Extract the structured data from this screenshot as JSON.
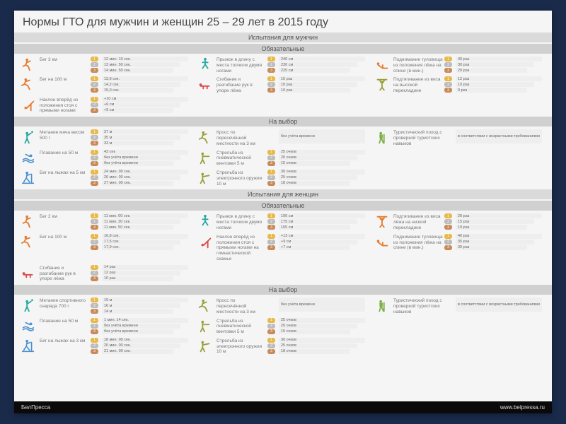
{
  "title": "Нормы ГТО для мужчин и женщин 25 – 29 лет в 2015 году",
  "colors": {
    "page_bg": "#1a2a4a",
    "card_bg": "#f5f5f5",
    "header_bg": "#dadada",
    "gold": "#e8b948",
    "silver": "#bcbcbc",
    "bronze": "#c88a5a",
    "icon_orange": "#e67b2e",
    "icon_teal": "#2aa9a0",
    "icon_red": "#d94c4c",
    "icon_olive": "#9aa03c",
    "icon_blue": "#4a90d0",
    "icon_green": "#7fb04d"
  },
  "sections": {
    "men": "Испытания для мужчин",
    "women": "Испытания для женщин",
    "required": "Обязательные",
    "optional": "На выбор"
  },
  "men_required": [
    {
      "icon": "runner",
      "color": "#e67b2e",
      "label": "Бег 3 км",
      "values": [
        "12 мин. 10 сек.",
        "13 мин. 50 сек.",
        "14 мин. 50 сек."
      ]
    },
    {
      "icon": "jump",
      "color": "#2aa9a0",
      "label": "Прыжок в длину с места толчком двумя ногами",
      "values": [
        "240 см",
        "230 см",
        "225 см"
      ]
    },
    {
      "icon": "situp",
      "color": "#e67b2e",
      "label": "Поднимание туловища из положения лёжа на спине (в мин.)",
      "values": [
        "40 раз",
        "30 раз",
        "20 раз"
      ]
    },
    {
      "icon": "sprint",
      "color": "#e67b2e",
      "label": "Бег на 100 м",
      "values": [
        "13,9 сек.",
        "14,2 сек.",
        "15,0 сек."
      ]
    },
    {
      "icon": "pushup",
      "color": "#d94c4c",
      "label": "Сгибание и разгибание рук в упоре лёжа",
      "values": [
        "16 раз",
        "10 раз",
        "10 раз"
      ]
    },
    {
      "icon": "pullup",
      "color": "#9aa03c",
      "label": "Подтягивание из виса на высокой перекладине",
      "values": [
        "12 раз",
        "10 раз",
        "9 раз"
      ]
    },
    {
      "icon": "bend",
      "color": "#e67b2e",
      "label": "Наклон вперёд из положения стоя с прямыми ногами",
      "values": [
        "+10 см",
        "+6 см",
        "+5 см"
      ]
    }
  ],
  "men_optional": [
    {
      "icon": "throw",
      "color": "#2aa9a0",
      "label": "Метание мяча весом 500 г",
      "values": [
        "37 м",
        "35 м",
        "33 м"
      ]
    },
    {
      "icon": "cross",
      "color": "#9aa03c",
      "label": "Кросс по пересечённой местности на 3 км",
      "values": [
        "без учёта времени"
      ],
      "single": true
    },
    {
      "icon": "hike",
      "color": "#7fb04d",
      "label": "Туристический поход с проверкой туристских навыков",
      "values": [
        "в соответствии с возрастными требованиями"
      ],
      "single": true
    },
    {
      "icon": "swim",
      "color": "#4a90d0",
      "label": "Плавание на 50 м",
      "values": [
        "43 сек",
        "без учёта времени",
        "без учёта времени"
      ]
    },
    {
      "icon": "shoot",
      "color": "#9aa03c",
      "label": "Стрельба из пневматической винтовки 5 м",
      "values": [
        "25 очков",
        "20 очков",
        "15 очков"
      ]
    },
    {
      "icon": "blank",
      "color": "#fff",
      "label": "",
      "values": []
    },
    {
      "icon": "ski",
      "color": "#4a90d0",
      "label": "Бег на лыжах на 5 км",
      "values": [
        "24 мин. 00 сек.",
        "26 мин. 00 сек.",
        "27 мин. 00 сек."
      ]
    },
    {
      "icon": "shoot2",
      "color": "#9aa03c",
      "label": "Стрельба из электронного оружия 10 м",
      "values": [
        "30 очков",
        "25 очков",
        "18 очков"
      ]
    }
  ],
  "women_required": [
    {
      "icon": "runner",
      "color": "#e67b2e",
      "label": "Бег 2 км",
      "values": [
        "11 мин. 00 сек.",
        "11 мин. 30 сек.",
        "11 мин. 50 сек."
      ]
    },
    {
      "icon": "jump",
      "color": "#2aa9a0",
      "label": "Прыжок в длину с места толчком двумя ногами",
      "values": [
        "190 см",
        "175 см",
        "165 см"
      ]
    },
    {
      "icon": "pullup",
      "color": "#e67b2e",
      "label": "Подтягивание из виса лёжа на низкой перекладине",
      "values": [
        "20 раз",
        "15 раз",
        "10 раз"
      ]
    },
    {
      "icon": "sprint",
      "color": "#e67b2e",
      "label": "Бег на 100 м",
      "values": [
        "16,8 сек.",
        "17,5 сек.",
        "17,9 сек."
      ]
    },
    {
      "icon": "bend",
      "color": "#d94c4c",
      "label": "Наклон вперёд из положения стоя с прямыми ногами на гимнастической скамье",
      "values": [
        "+13 см",
        "+9 см",
        "+7 см"
      ]
    },
    {
      "icon": "situp",
      "color": "#e67b2e",
      "label": "Поднимание туловища из положения лёжа на спине (в мин.)",
      "values": [
        "40 раз",
        "35 раз",
        "30 раз"
      ]
    },
    {
      "icon": "pushup",
      "color": "#d94c4c",
      "label": "Сгибание и разгибание рук в упоре лёжа",
      "values": [
        "14 раз",
        "12 раз",
        "10 раз"
      ]
    }
  ],
  "women_optional": [
    {
      "icon": "throw",
      "color": "#2aa9a0",
      "label": "Метание спортивного снаряда 700 г",
      "values": [
        "19 м",
        "16 м",
        "14 м"
      ]
    },
    {
      "icon": "cross",
      "color": "#9aa03c",
      "label": "Кросс по пересечённой местности на 3 км",
      "values": [
        "без учёта времени"
      ],
      "single": true
    },
    {
      "icon": "hike",
      "color": "#7fb04d",
      "label": "Туристический поход с проверкой туристских навыков",
      "values": [
        "в соответствии с возрастными требованиями"
      ],
      "single": true
    },
    {
      "icon": "swim",
      "color": "#4a90d0",
      "label": "Плавание на 50 м",
      "values": [
        "1 мин. 14 сек.",
        "без учёта времени",
        "без учёта времени"
      ]
    },
    {
      "icon": "shoot",
      "color": "#9aa03c",
      "label": "Стрельба из пневматической винтовки 5 м",
      "values": [
        "25 очков",
        "20 очков",
        "15 очков"
      ]
    },
    {
      "icon": "blank",
      "color": "#fff",
      "label": "",
      "values": []
    },
    {
      "icon": "ski",
      "color": "#4a90d0",
      "label": "Бег на лыжах на 3 км",
      "values": [
        "18 мин. 00 сек.",
        "20 мин. 00 сек.",
        "21 мин. 00 сек."
      ]
    },
    {
      "icon": "shoot2",
      "color": "#9aa03c",
      "label": "Стрельба из электронного оружия 10 м",
      "values": [
        "30 очков",
        "25 очков",
        "18 очков"
      ]
    }
  ],
  "footer": {
    "left": "БелПресса",
    "right": "www.belpressa.ru"
  }
}
